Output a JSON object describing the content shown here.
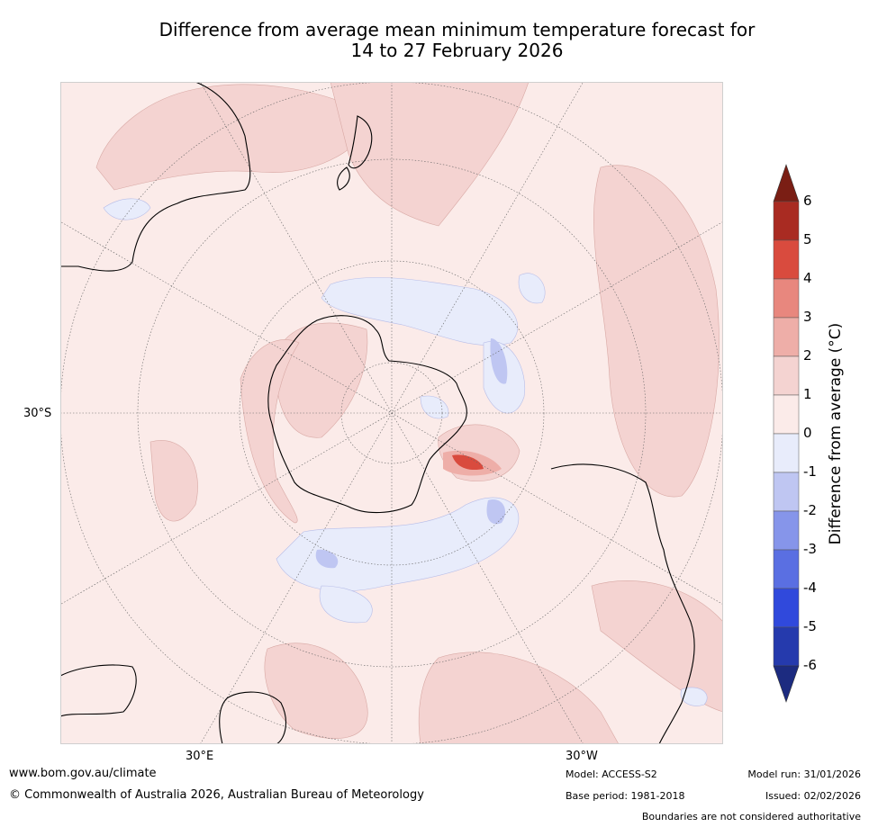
{
  "title": {
    "line1": "Difference from average mean minimum temperature forecast for",
    "line2": "14 to 27 February 2026"
  },
  "map": {
    "projection": "south-polar-stereographic",
    "lat_label": "30°S",
    "lon_labels": [
      "30°E",
      "30°W"
    ]
  },
  "colorbar": {
    "title": "Difference from average (°C)",
    "tick_labels": [
      "6",
      "5",
      "4",
      "3",
      "2",
      "1",
      "0",
      "-1",
      "-2",
      "-3",
      "-4",
      "-5",
      "-6"
    ],
    "colors": [
      "#7a1e14",
      "#a92b22",
      "#d94b3e",
      "#e8877e",
      "#eeaea8",
      "#f4d3d1",
      "#fbebe9",
      "#e8ecfb",
      "#bfc6f2",
      "#8695ea",
      "#5a6fe2",
      "#3049dc",
      "#253aad",
      "#1c2b80"
    ]
  },
  "footer": {
    "website": "www.bom.gov.au/climate",
    "copyright": "© Commonwealth of Australia 2026, Australian Bureau of Meteorology",
    "model": "Model: ACCESS-S2",
    "base_period": "Base period: 1981-2018",
    "model_run": "Model run: 31/01/2026",
    "issued": "Issued: 02/02/2026",
    "disclaimer": "Boundaries are not considered authoritative"
  }
}
